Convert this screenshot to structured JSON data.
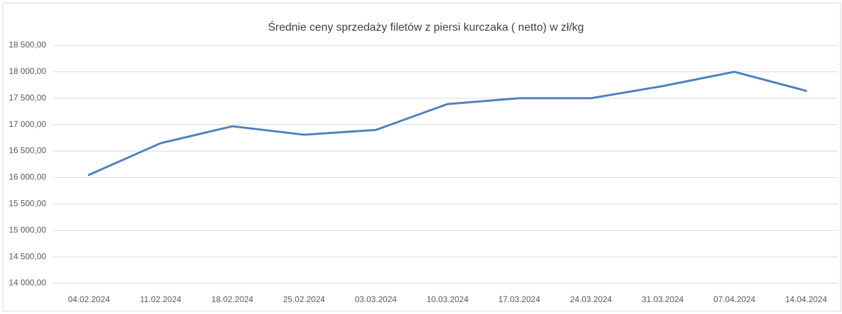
{
  "chart_data": {
    "type": "line",
    "title": "Średnie ceny sprzedaży filetów z piersi kurczaka ( netto) w zł/kg",
    "categories": [
      "04.02.2024",
      "11.02.2024",
      "18.02.2024",
      "25.02.2024",
      "03.03.2024",
      "10.03.2024",
      "17.03.2024",
      "24.03.2024",
      "31.03.2024",
      "07.04.2024",
      "14.04.2024"
    ],
    "values": [
      16050,
      16650,
      16970,
      16810,
      16900,
      17390,
      17500,
      17500,
      17730,
      18000,
      17640
    ],
    "color": "#4f81bd",
    "ylim": [
      14000,
      18500
    ],
    "yticks": [
      {
        "value": 14000,
        "label": "14 000,00"
      },
      {
        "value": 14500,
        "label": "14 500,00"
      },
      {
        "value": 15000,
        "label": "15 000,00"
      },
      {
        "value": 15500,
        "label": "15 500,00"
      },
      {
        "value": 16000,
        "label": "16 000,00"
      },
      {
        "value": 16500,
        "label": "16 500,00"
      },
      {
        "value": 17000,
        "label": "17 000,00"
      },
      {
        "value": 17500,
        "label": "17 500,00"
      },
      {
        "value": 18000,
        "label": "18 000,00"
      },
      {
        "value": 18500,
        "label": "18 500,00"
      }
    ],
    "grid": true
  }
}
